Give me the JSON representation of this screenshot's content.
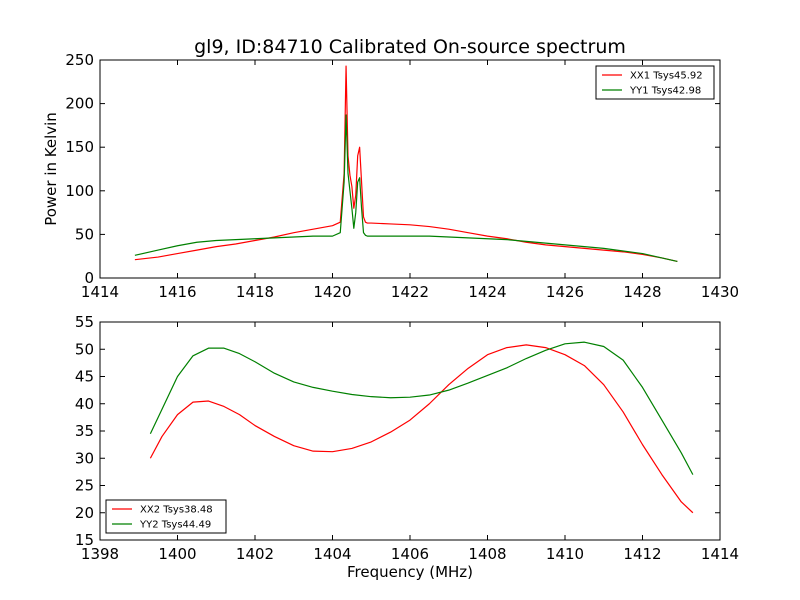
{
  "title": "gl9, ID:84710 Calibrated On-source spectrum",
  "xlabel": "Frequency (MHz)",
  "ylabel": "Power in Kelvin",
  "colors": {
    "red": "#ff0000",
    "green": "#008000"
  },
  "chart_data": [
    {
      "type": "line",
      "panel": "top",
      "xlim": [
        1414,
        1430
      ],
      "ylim": [
        0,
        250
      ],
      "xticks": [
        1414,
        1416,
        1418,
        1420,
        1422,
        1424,
        1426,
        1428,
        1430
      ],
      "yticks": [
        0,
        50,
        100,
        150,
        200,
        250
      ],
      "legend_position": "top-right",
      "series": [
        {
          "name": "XX1 Tsys45.92",
          "color": "red",
          "x": [
            1414.9,
            1415.5,
            1416.0,
            1416.5,
            1417.0,
            1417.5,
            1418.0,
            1418.5,
            1419.0,
            1419.5,
            1420.0,
            1420.2,
            1420.3,
            1420.35,
            1420.4,
            1420.45,
            1420.5,
            1420.55,
            1420.6,
            1420.65,
            1420.7,
            1420.75,
            1420.8,
            1420.85,
            1420.9,
            1421.0,
            1421.5,
            1422.0,
            1422.5,
            1423.0,
            1423.5,
            1424.0,
            1424.5,
            1425.0,
            1425.5,
            1426.0,
            1426.5,
            1427.0,
            1427.5,
            1428.0,
            1428.5,
            1428.9
          ],
          "y": [
            21,
            24,
            28,
            32,
            36,
            39,
            43,
            47,
            52,
            56,
            60,
            64,
            120,
            243,
            140,
            118,
            105,
            80,
            95,
            140,
            150,
            110,
            70,
            64,
            63,
            63,
            62,
            61,
            59,
            56,
            52,
            48,
            45,
            41,
            38,
            36,
            34,
            32,
            30,
            27,
            23,
            19
          ]
        },
        {
          "name": "YY1 Tsys42.98",
          "color": "green",
          "x": [
            1414.9,
            1415.5,
            1416.0,
            1416.5,
            1417.0,
            1417.5,
            1418.0,
            1418.5,
            1419.0,
            1419.5,
            1420.0,
            1420.2,
            1420.3,
            1420.35,
            1420.4,
            1420.45,
            1420.5,
            1420.55,
            1420.6,
            1420.65,
            1420.7,
            1420.75,
            1420.8,
            1420.85,
            1420.9,
            1421.0,
            1421.5,
            1422.0,
            1422.5,
            1423.0,
            1423.5,
            1424.0,
            1424.5,
            1425.0,
            1425.5,
            1426.0,
            1426.5,
            1427.0,
            1427.5,
            1428.0,
            1428.5,
            1428.9
          ],
          "y": [
            26,
            32,
            37,
            41,
            43,
            44,
            45,
            46,
            47,
            48,
            48,
            52,
            110,
            187,
            120,
            100,
            80,
            57,
            75,
            110,
            115,
            80,
            52,
            49,
            48,
            48,
            48,
            48,
            48,
            47,
            46,
            45,
            44,
            42,
            40,
            38,
            36,
            34,
            31,
            28,
            23,
            19
          ]
        }
      ]
    },
    {
      "type": "line",
      "panel": "bottom",
      "xlim": [
        1398,
        1414
      ],
      "ylim": [
        15,
        55
      ],
      "xticks": [
        1398,
        1400,
        1402,
        1404,
        1406,
        1408,
        1410,
        1412,
        1414
      ],
      "yticks": [
        15,
        20,
        25,
        30,
        35,
        40,
        45,
        50,
        55
      ],
      "legend_position": "bottom-left",
      "series": [
        {
          "name": "XX2 Tsys38.48",
          "color": "red",
          "x": [
            1399.3,
            1399.6,
            1400.0,
            1400.4,
            1400.8,
            1401.2,
            1401.6,
            1402.0,
            1402.5,
            1403.0,
            1403.5,
            1404.0,
            1404.5,
            1405.0,
            1405.5,
            1406.0,
            1406.5,
            1407.0,
            1407.5,
            1408.0,
            1408.5,
            1409.0,
            1409.5,
            1410.0,
            1410.5,
            1411.0,
            1411.5,
            1412.0,
            1412.5,
            1413.0,
            1413.3
          ],
          "y": [
            30,
            34,
            38,
            40.3,
            40.5,
            39.5,
            38,
            36,
            34,
            32.3,
            31.3,
            31.2,
            31.8,
            33,
            34.8,
            37,
            40,
            43.5,
            46.5,
            49,
            50.3,
            50.8,
            50.3,
            49,
            47,
            43.5,
            38.5,
            32.5,
            27,
            22,
            20
          ]
        },
        {
          "name": "YY2 Tsys44.49",
          "color": "green",
          "x": [
            1399.3,
            1399.6,
            1400.0,
            1400.4,
            1400.8,
            1401.2,
            1401.6,
            1402.0,
            1402.5,
            1403.0,
            1403.5,
            1404.0,
            1404.5,
            1405.0,
            1405.5,
            1406.0,
            1406.5,
            1407.0,
            1407.5,
            1408.0,
            1408.5,
            1409.0,
            1409.5,
            1410.0,
            1410.5,
            1411.0,
            1411.5,
            1412.0,
            1412.5,
            1413.0,
            1413.3
          ],
          "y": [
            34.5,
            39,
            45,
            48.8,
            50.2,
            50.2,
            49.2,
            47.7,
            45.6,
            44,
            43,
            42.3,
            41.7,
            41.3,
            41.1,
            41.2,
            41.6,
            42.5,
            43.8,
            45.2,
            46.6,
            48.3,
            49.8,
            51,
            51.3,
            50.5,
            48,
            43,
            37,
            31,
            27
          ]
        }
      ]
    }
  ]
}
